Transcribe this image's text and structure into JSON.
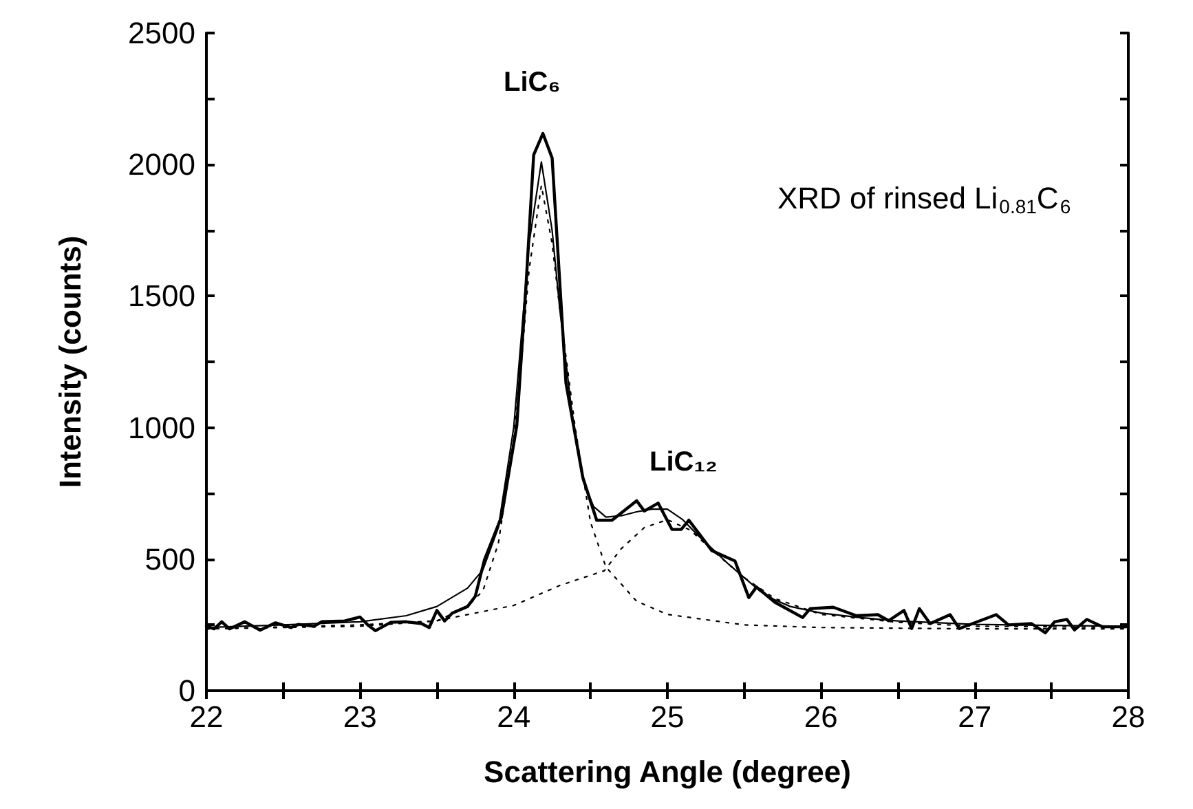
{
  "chart_data": {
    "type": "line",
    "xlabel": "Scattering Angle (degree)",
    "ylabel": "Intensity (counts)",
    "xlim": [
      22,
      28
    ],
    "xticks": [
      22,
      {
        "value": 22.5,
        "label": null
      },
      23,
      {
        "value": 23.5,
        "label": null
      },
      24,
      {
        "value": 24.5,
        "label": null
      },
      25,
      {
        "value": 25.5,
        "label": null
      },
      26,
      {
        "value": 26.5,
        "label": null
      },
      27,
      {
        "value": 27.5,
        "label": null
      },
      28
    ],
    "ylim": [
      0,
      2500
    ],
    "yticks": [
      0,
      {
        "value": 250,
        "label": null
      },
      500,
      {
        "value": 750,
        "label": null
      },
      1000,
      {
        "value": 1250,
        "label": null
      },
      1500,
      {
        "value": 1750,
        "label": null
      },
      2000,
      {
        "value": 2250,
        "label": null
      },
      2500
    ],
    "marker": "none",
    "annotations": [
      "LiC₆",
      "LiC₁₂",
      "XRD of rinsed Li$_{0.81}$C$_{6}$"
    ],
    "series": [
      {
        "color": "#000000",
        "line_style": "solid",
        "x": [
          22,
          22.05,
          22.1,
          22.15,
          22.25,
          22.35,
          22.45,
          22.55,
          22.6,
          22.7,
          22.75,
          22.9,
          23,
          23.05,
          23.1,
          23.2,
          23.3,
          23.4,
          23.45,
          23.5,
          23.55,
          23.6,
          23.7,
          23.75,
          23.81,
          23.92,
          24.02,
          24.08,
          24.13,
          24.19,
          24.25,
          24.34,
          24.45,
          24.54,
          24.64,
          24.8,
          24.85,
          24.94,
          25.03,
          25.09,
          25.14,
          25.29,
          25.44,
          25.53,
          25.58,
          25.7,
          25.88,
          25.93,
          26.08,
          26.23,
          26.37,
          26.44,
          26.54,
          26.59,
          26.64,
          26.71,
          26.84,
          26.9,
          27.14,
          27.22,
          27.37,
          27.46,
          27.52,
          27.6,
          27.65,
          27.73,
          27.83,
          28
        ],
        "values": [
          245,
          235,
          262,
          235,
          262,
          230,
          258,
          240,
          252,
          245,
          262,
          265,
          280,
          250,
          228,
          260,
          262,
          255,
          240,
          305,
          265,
          295,
          320,
          359,
          498,
          660,
          1007,
          1539,
          2037,
          2118,
          2025,
          1169,
          810,
          648,
          648,
          722,
          683,
          713,
          613,
          613,
          648,
          532,
          493,
          354,
          394,
          336,
          278,
          312,
          317,
          285,
          289,
          266,
          305,
          236,
          312,
          255,
          289,
          236,
          289,
          250,
          255,
          220,
          262,
          271,
          231,
          271,
          243,
          243
        ]
      },
      {
        "color": "#000000",
        "line_style": "solid",
        "x": [
          22,
          22.5,
          23,
          23.3,
          23.5,
          23.7,
          23.8,
          23.9,
          24,
          24.05,
          24.1,
          24.18,
          24.25,
          24.3,
          24.38,
          24.45,
          24.52,
          24.6,
          24.7,
          24.8,
          24.9,
          25,
          25.1,
          25.2,
          25.3,
          25.4,
          25.5,
          25.6,
          25.7,
          25.8,
          26,
          26.25,
          26.5,
          27,
          27.5,
          28
        ],
        "values": [
          240,
          250,
          262,
          285,
          320,
          390,
          460,
          620,
          1000,
          1350,
          1700,
          2010,
          1750,
          1450,
          1050,
          800,
          700,
          660,
          665,
          680,
          690,
          690,
          650,
          590,
          535,
          480,
          430,
          380,
          345,
          320,
          295,
          278,
          265,
          252,
          248,
          245
        ]
      },
      {
        "color": "#000000",
        "line_style": "dotted",
        "x": [
          22,
          23,
          23.5,
          23.7,
          23.8,
          23.9,
          24,
          24.05,
          24.1,
          24.18,
          24.25,
          24.3,
          24.4,
          24.5,
          24.6,
          24.8,
          25,
          25.5,
          26,
          27,
          28
        ],
        "values": [
          235,
          245,
          265,
          320,
          380,
          560,
          950,
          1250,
          1600,
          1920,
          1700,
          1450,
          1000,
          640,
          470,
          340,
          290,
          250,
          240,
          235,
          235
        ]
      },
      {
        "color": "#000000",
        "line_style": "dotted",
        "x": [
          22,
          23,
          23.5,
          24,
          24.3,
          24.59,
          24.7,
          24.85,
          25,
          25.15,
          25.3,
          25.5,
          25.7,
          26,
          26.5,
          27,
          28
        ],
        "values": [
          235,
          250,
          266,
          324,
          400,
          456,
          540,
          620,
          650,
          610,
          530,
          430,
          350,
          290,
          260,
          245,
          240
        ]
      }
    ]
  }
}
